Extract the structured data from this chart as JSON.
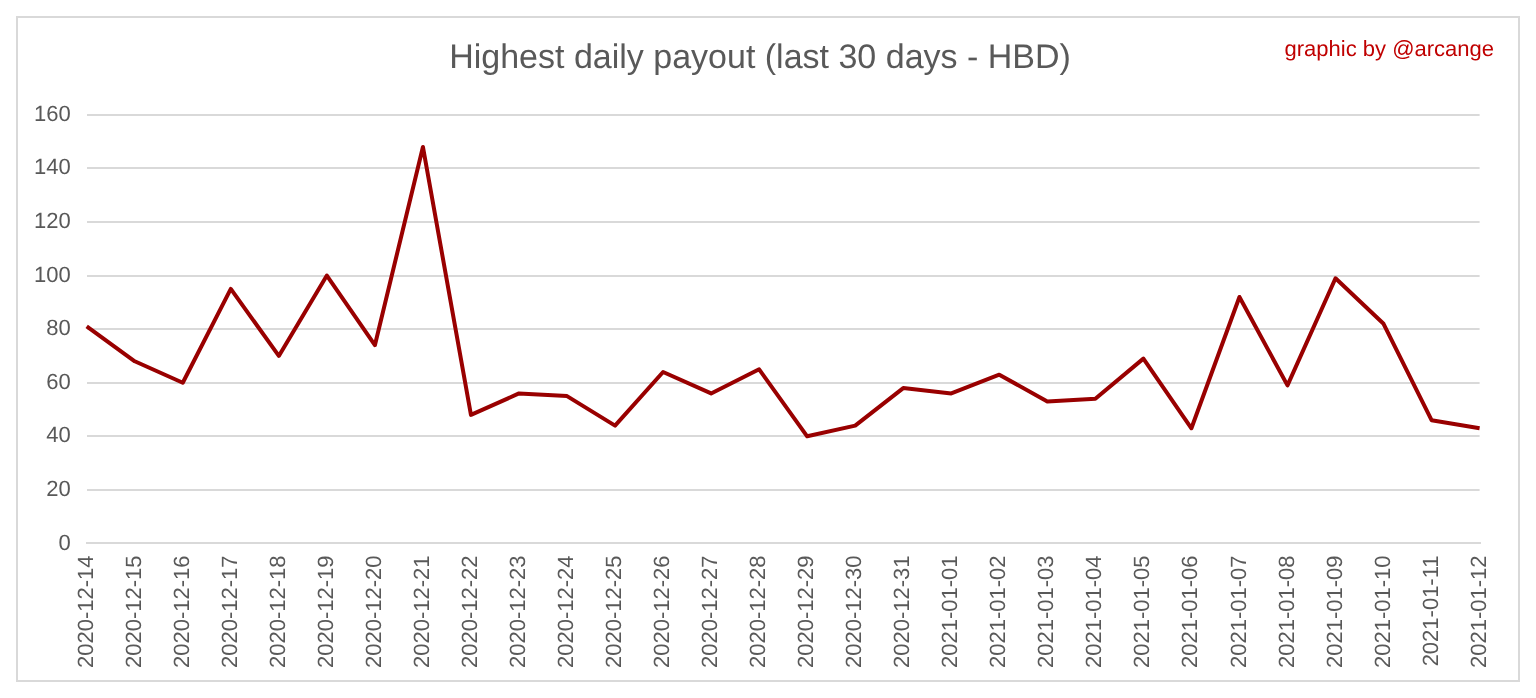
{
  "chart_data": {
    "type": "line",
    "title": "Highest daily payout (last 30 days - HBD)",
    "annotations": [
      "graphic by @arcange"
    ],
    "categories": [
      "2020-12-14",
      "2020-12-15",
      "2020-12-16",
      "2020-12-17",
      "2020-12-18",
      "2020-12-19",
      "2020-12-20",
      "2020-12-21",
      "2020-12-22",
      "2020-12-23",
      "2020-12-24",
      "2020-12-25",
      "2020-12-26",
      "2020-12-27",
      "2020-12-28",
      "2020-12-29",
      "2020-12-30",
      "2020-12-31",
      "2021-01-01",
      "2021-01-02",
      "2021-01-03",
      "2021-01-04",
      "2021-01-05",
      "2021-01-06",
      "2021-01-07",
      "2021-01-08",
      "2021-01-09",
      "2021-01-10",
      "2021-01-11",
      "2021-01-12"
    ],
    "series": [
      {
        "color": "#990000",
        "values": [
          81,
          68,
          60,
          95,
          70,
          100,
          74,
          148,
          48,
          56,
          55,
          44,
          64,
          56,
          65,
          40,
          44,
          58,
          56,
          63,
          53,
          54,
          69,
          43,
          92,
          59,
          99,
          82,
          46,
          43
        ]
      }
    ],
    "ylim": [
      0,
      160
    ],
    "yticks": [
      0,
      20,
      40,
      60,
      80,
      100,
      120,
      140,
      160
    ],
    "grid": "y",
    "legend": false,
    "marker": "none",
    "line_style": "solid"
  }
}
